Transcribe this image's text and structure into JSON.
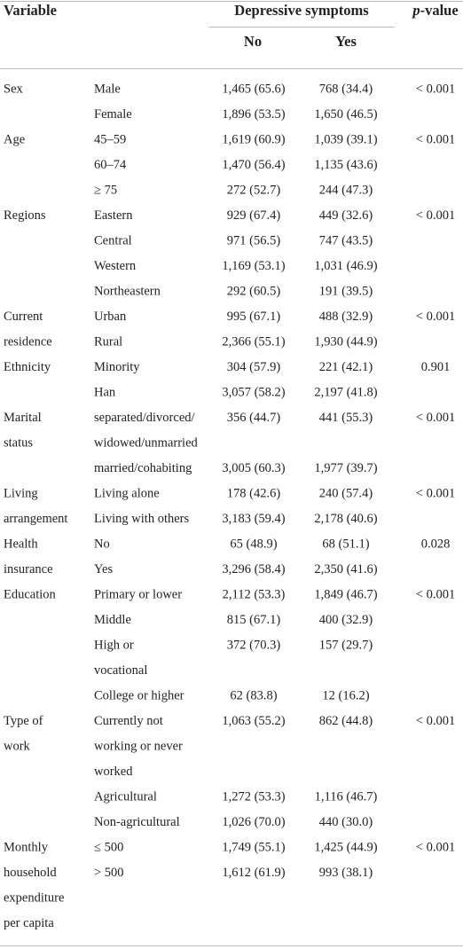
{
  "table": {
    "header": {
      "variable": "Variable",
      "group": "Depressive symptoms",
      "no": "No",
      "yes": "Yes",
      "p_italic": "p",
      "p_rest": "-value"
    },
    "rows": [
      [
        "Sex",
        "Male",
        "1,465 (65.6)",
        "768 (34.4)",
        "< 0.001"
      ],
      [
        null,
        "Female",
        "1,896 (53.5)",
        "1,650 (46.5)",
        null
      ],
      [
        "Age",
        "45–59",
        "1,619 (60.9)",
        "1,039 (39.1)",
        "< 0.001"
      ],
      [
        null,
        "60–74",
        "1,470 (56.4)",
        "1,135 (43.6)",
        null
      ],
      [
        null,
        "≥ 75",
        "272 (52.7)",
        "244 (47.3)",
        null
      ],
      [
        "Regions",
        "Eastern",
        "929 (67.4)",
        "449 (32.6)",
        "< 0.001"
      ],
      [
        null,
        "Central",
        "971 (56.5)",
        "747 (43.5)",
        null
      ],
      [
        null,
        "Western",
        "1,169 (53.1)",
        "1,031 (46.9)",
        null
      ],
      [
        null,
        "Northeastern",
        "292 (60.5)",
        "191 (39.5)",
        null
      ],
      [
        "Current",
        "Urban",
        "995 (67.1)",
        "488 (32.9)",
        "< 0.001"
      ],
      [
        "residence",
        "Rural",
        "2,366 (55.1)",
        "1,930 (44.9)",
        null
      ],
      [
        "Ethnicity",
        "Minority",
        "304 (57.9)",
        "221 (42.1)",
        "0.901"
      ],
      [
        null,
        "Han",
        "3,057 (58.2)",
        "2,197 (41.8)",
        null
      ],
      [
        "Marital",
        "separated/divorced/",
        "356 (44.7)",
        "441 (55.3)",
        "< 0.001"
      ],
      [
        "status",
        "widowed/unmarried",
        null,
        null,
        null
      ],
      [
        null,
        "married/cohabiting",
        "3,005 (60.3)",
        "1,977 (39.7)",
        null
      ],
      [
        "Living",
        "Living alone",
        "178 (42.6)",
        "240 (57.4)",
        "< 0.001"
      ],
      [
        "arrangement",
        "Living with others",
        "3,183 (59.4)",
        "2,178 (40.6)",
        null
      ],
      [
        "Health",
        "No",
        "65 (48.9)",
        "68 (51.1)",
        "0.028"
      ],
      [
        "insurance",
        "Yes",
        "3,296 (58.4)",
        "2,350 (41.6)",
        null
      ],
      [
        "Education",
        "Primary or lower",
        "2,112 (53.3)",
        "1,849 (46.7)",
        "< 0.001"
      ],
      [
        null,
        "Middle",
        "815 (67.1)",
        "400 (32.9)",
        null
      ],
      [
        null,
        "High or",
        "372 (70.3)",
        "157 (29.7)",
        null
      ],
      [
        null,
        "vocational",
        null,
        null,
        null
      ],
      [
        null,
        "College or higher",
        "62 (83.8)",
        "12 (16.2)",
        null
      ],
      [
        "Type of",
        "Currently not",
        "1,063 (55.2)",
        "862 (44.8)",
        "< 0.001"
      ],
      [
        "work",
        "working or never",
        null,
        null,
        null
      ],
      [
        null,
        "worked",
        null,
        null,
        null
      ],
      [
        null,
        "Agricultural",
        "1,272 (53.3)",
        "1,116 (46.7)",
        null
      ],
      [
        null,
        "Non-agricultural",
        "1,026 (70.0)",
        "440 (30.0)",
        null
      ],
      [
        "Monthly",
        "≤ 500",
        "1,749 (55.1)",
        "1,425 (44.9)",
        "< 0.001"
      ],
      [
        "household",
        "> 500",
        "1,612 (61.9)",
        "993 (38.1)",
        null
      ],
      [
        "expenditure",
        null,
        null,
        null,
        null
      ],
      [
        "per capita",
        null,
        null,
        null,
        null
      ]
    ]
  }
}
